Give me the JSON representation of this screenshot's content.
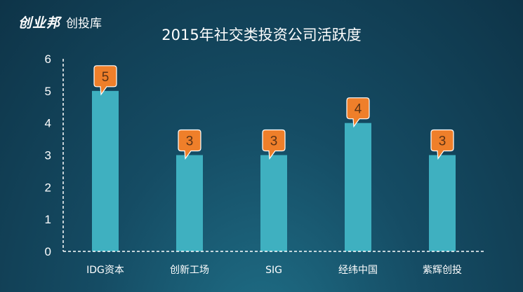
{
  "logo": {
    "brand": "创业邦",
    "sub": "创投库"
  },
  "chart_data": {
    "type": "bar",
    "title": "2015年社交类投资公司活跃度",
    "categories": [
      "IDG资本",
      "创新工场",
      "SIG",
      "经纬中国",
      "紫辉创投"
    ],
    "values": [
      5,
      3,
      3,
      4,
      3
    ],
    "ylim": [
      0,
      6
    ],
    "yticks": [
      0,
      1,
      2,
      3,
      4,
      5,
      6
    ],
    "xlabel": "",
    "ylabel": "",
    "grid": false,
    "colors": {
      "bar": "#3fb0c0",
      "callout": "#ef7f2a",
      "callout_text": "#5a3215"
    }
  }
}
